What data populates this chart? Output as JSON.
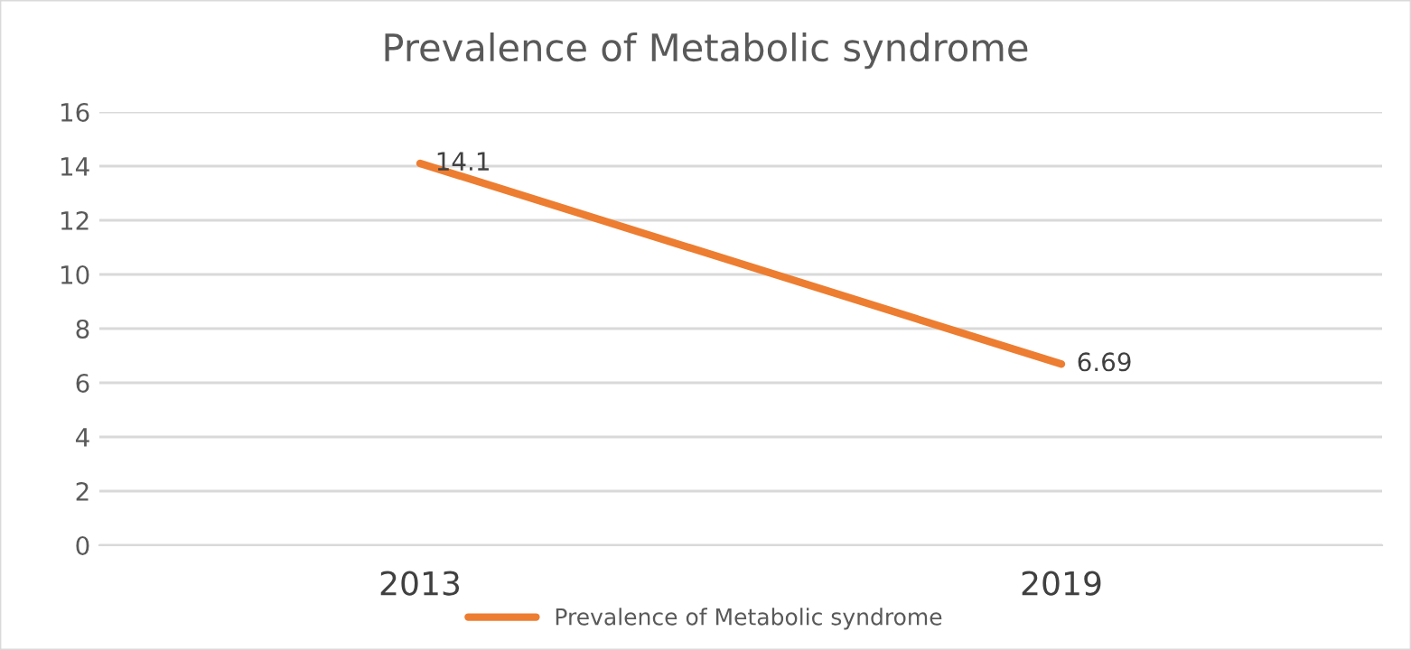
{
  "chart_data": {
    "type": "line",
    "title": "Prevalence of Metabolic syndrome",
    "categories": [
      "2013",
      "2019"
    ],
    "series": [
      {
        "name": "Prevalence of Metabolic syndrome",
        "color": "#ed7d31",
        "values": [
          14.1,
          6.69
        ]
      }
    ],
    "ylim": [
      0,
      16
    ],
    "yticks": [
      0,
      2,
      4,
      6,
      8,
      10,
      12,
      14,
      16
    ],
    "grid": "y",
    "legend": "bottom",
    "data_labels": true,
    "marker": "none",
    "line_style": "solid"
  }
}
